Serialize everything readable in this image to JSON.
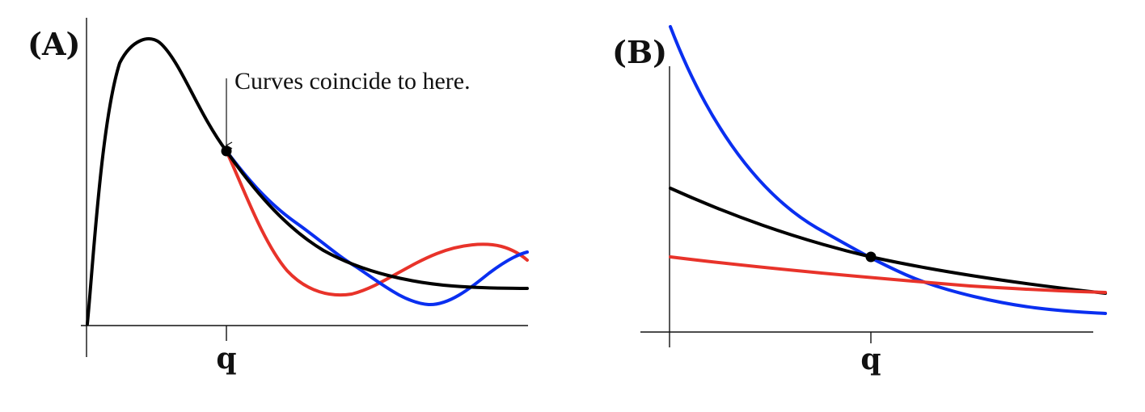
{
  "panel_a": {
    "label": "(A)",
    "tick_label": "q",
    "annotation": "Curves coincide to here.",
    "colors": {
      "black": "#000000",
      "red": "#e8332a",
      "blue": "#0a2ff0"
    }
  },
  "panel_b": {
    "label": "(B)",
    "tick_label": "q",
    "colors": {
      "black": "#000000",
      "red": "#e8332a",
      "blue": "#0a2ff0"
    }
  }
}
